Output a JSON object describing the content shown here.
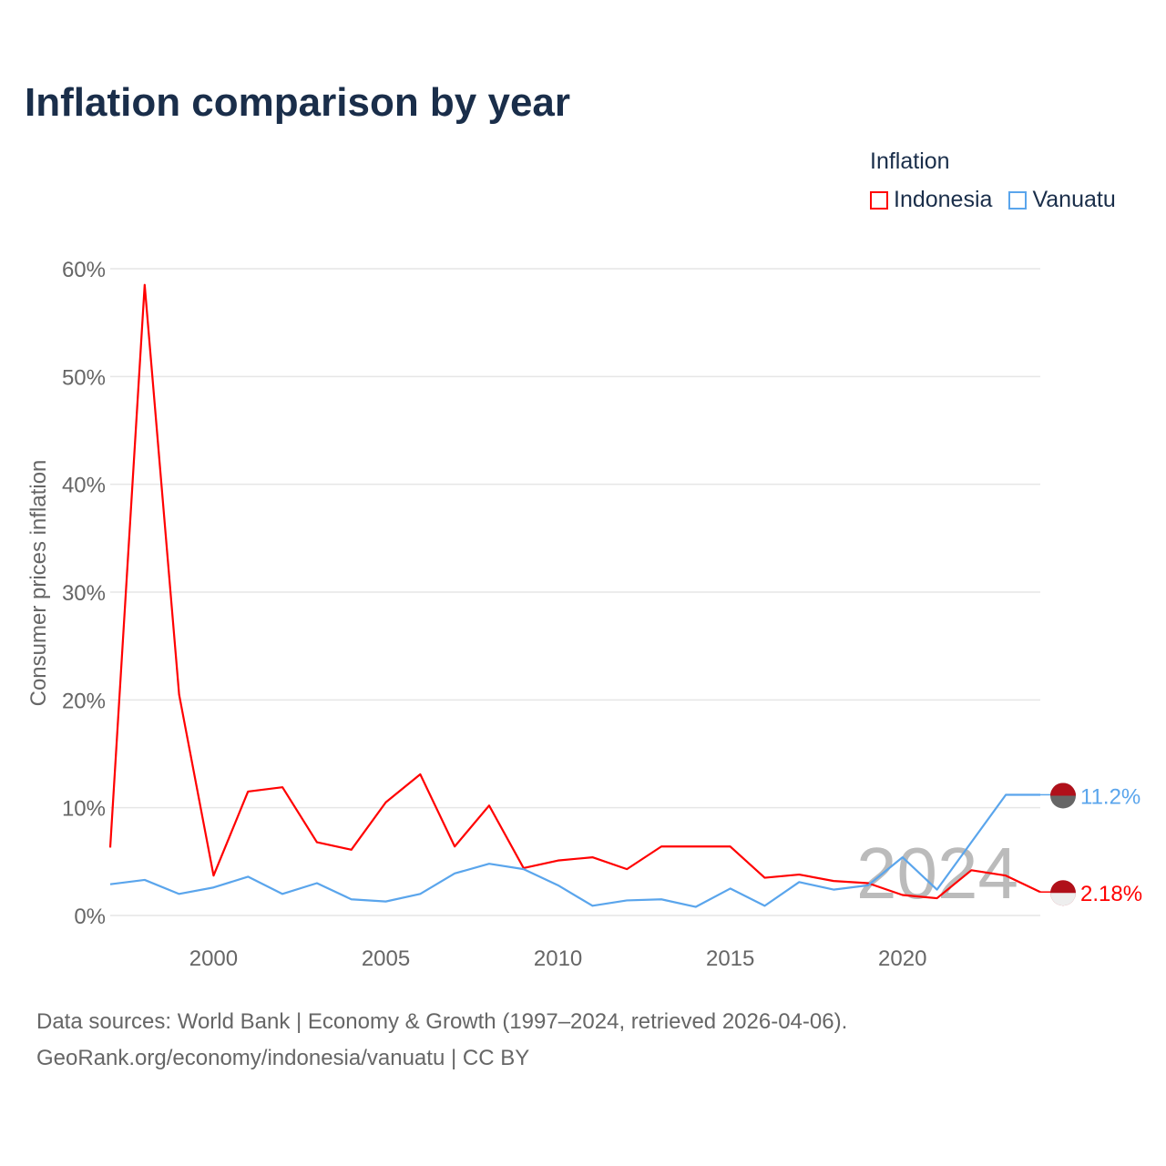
{
  "chart_data": {
    "type": "line",
    "title": "Inflation comparison by year",
    "xlabel": "",
    "ylabel": "Consumer prices inflation",
    "xlim": [
      1997,
      2024
    ],
    "ylim": [
      0,
      60
    ],
    "yticks": [
      0,
      10,
      20,
      30,
      40,
      50,
      60
    ],
    "ytick_labels": [
      "0%",
      "10%",
      "20%",
      "30%",
      "40%",
      "50%",
      "60%"
    ],
    "xticks": [
      2000,
      2005,
      2010,
      2015,
      2020
    ],
    "xtick_labels": [
      "2000",
      "2005",
      "2010",
      "2015",
      "2020"
    ],
    "grid": true,
    "legend_title": "Inflation",
    "legend_placement": "top-right",
    "year_watermark": "2024",
    "x": [
      1997,
      1998,
      1999,
      2000,
      2001,
      2002,
      2003,
      2004,
      2005,
      2006,
      2007,
      2008,
      2009,
      2010,
      2011,
      2012,
      2013,
      2014,
      2015,
      2016,
      2017,
      2018,
      2019,
      2020,
      2021,
      2022,
      2023,
      2024
    ],
    "series": [
      {
        "name": "Indonesia",
        "color": "#ff0000",
        "end_label": "2.18%",
        "values": [
          6.3,
          58.5,
          20.5,
          3.7,
          11.5,
          11.9,
          6.8,
          6.1,
          10.5,
          13.1,
          6.4,
          10.2,
          4.4,
          5.1,
          5.4,
          4.3,
          6.4,
          6.4,
          6.4,
          3.5,
          3.8,
          3.2,
          3.0,
          1.9,
          1.6,
          4.2,
          3.7,
          2.18
        ]
      },
      {
        "name": "Vanuatu",
        "color": "#5aa5ec",
        "end_label": "11.2%",
        "values": [
          2.9,
          3.3,
          2.0,
          2.6,
          3.6,
          2.0,
          3.0,
          1.5,
          1.3,
          2.0,
          3.9,
          4.8,
          4.3,
          2.8,
          0.9,
          1.4,
          1.5,
          0.8,
          2.5,
          0.9,
          3.1,
          2.4,
          2.8,
          5.4,
          2.4,
          6.8,
          11.2,
          11.2
        ]
      }
    ]
  },
  "footer": {
    "line1": "Data sources: World Bank | Economy & Growth (1997–2024, retrieved 2026-04-06).",
    "line2": "GeoRank.org/economy/indonesia/vanuatu | CC BY"
  }
}
